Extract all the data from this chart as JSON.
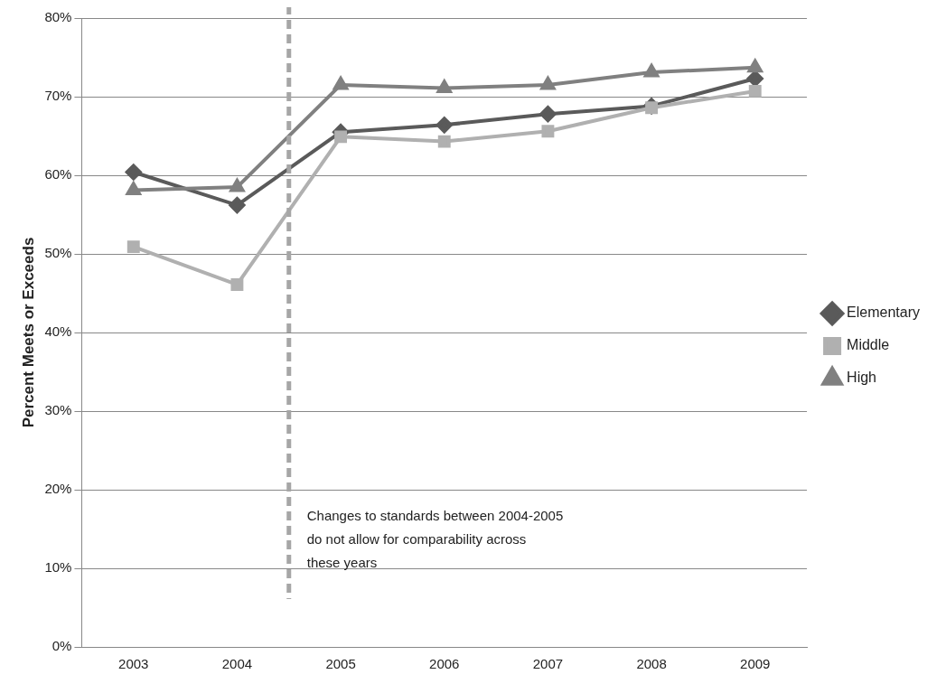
{
  "chart_data": {
    "type": "line",
    "ylabel": "Percent Meets or Exceeds",
    "x": [
      2003,
      2004,
      2005,
      2006,
      2007,
      2008,
      2009
    ],
    "xlim": [
      2002.5,
      2009.5
    ],
    "xticks": [
      2003,
      2004,
      2005,
      2006,
      2007,
      2008,
      2009
    ],
    "ylim": [
      0,
      80
    ],
    "yticks": [
      {
        "value": 0,
        "label": "0%"
      },
      {
        "value": 10,
        "label": "10%"
      },
      {
        "value": 20,
        "label": "20%"
      },
      {
        "value": 30,
        "label": "30%"
      },
      {
        "value": 40,
        "label": "40%"
      },
      {
        "value": 50,
        "label": "50%"
      },
      {
        "value": 60,
        "label": "60%"
      },
      {
        "value": 70,
        "label": "70%"
      },
      {
        "value": 80,
        "label": "80%"
      }
    ],
    "series": [
      {
        "name": "Elementary",
        "color": "#5a5a5a",
        "marker": "diamond",
        "values": [
          60.4,
          56.2,
          65.5,
          66.4,
          67.8,
          68.8,
          72.3
        ]
      },
      {
        "name": "Middle",
        "color": "#b0b0b0",
        "marker": "square",
        "values": [
          50.9,
          46.1,
          64.9,
          64.3,
          65.6,
          68.6,
          70.7
        ]
      },
      {
        "name": "High",
        "color": "#808080",
        "marker": "triangle",
        "values": [
          58.1,
          58.5,
          71.5,
          71.1,
          71.5,
          73.1,
          73.7
        ]
      }
    ],
    "ref_lines": [
      {
        "axis": "x",
        "value": 2004.5,
        "color": "#a6a6a6",
        "line_style": "dashed"
      }
    ],
    "annotations": [
      {
        "text": "Changes to standards between 2004-2005\ndo not allow for comparability across\nthese years",
        "x": 2004.5,
        "y": 20
      }
    ],
    "grid": "y",
    "legend": "right",
    "line_style": "solid"
  }
}
